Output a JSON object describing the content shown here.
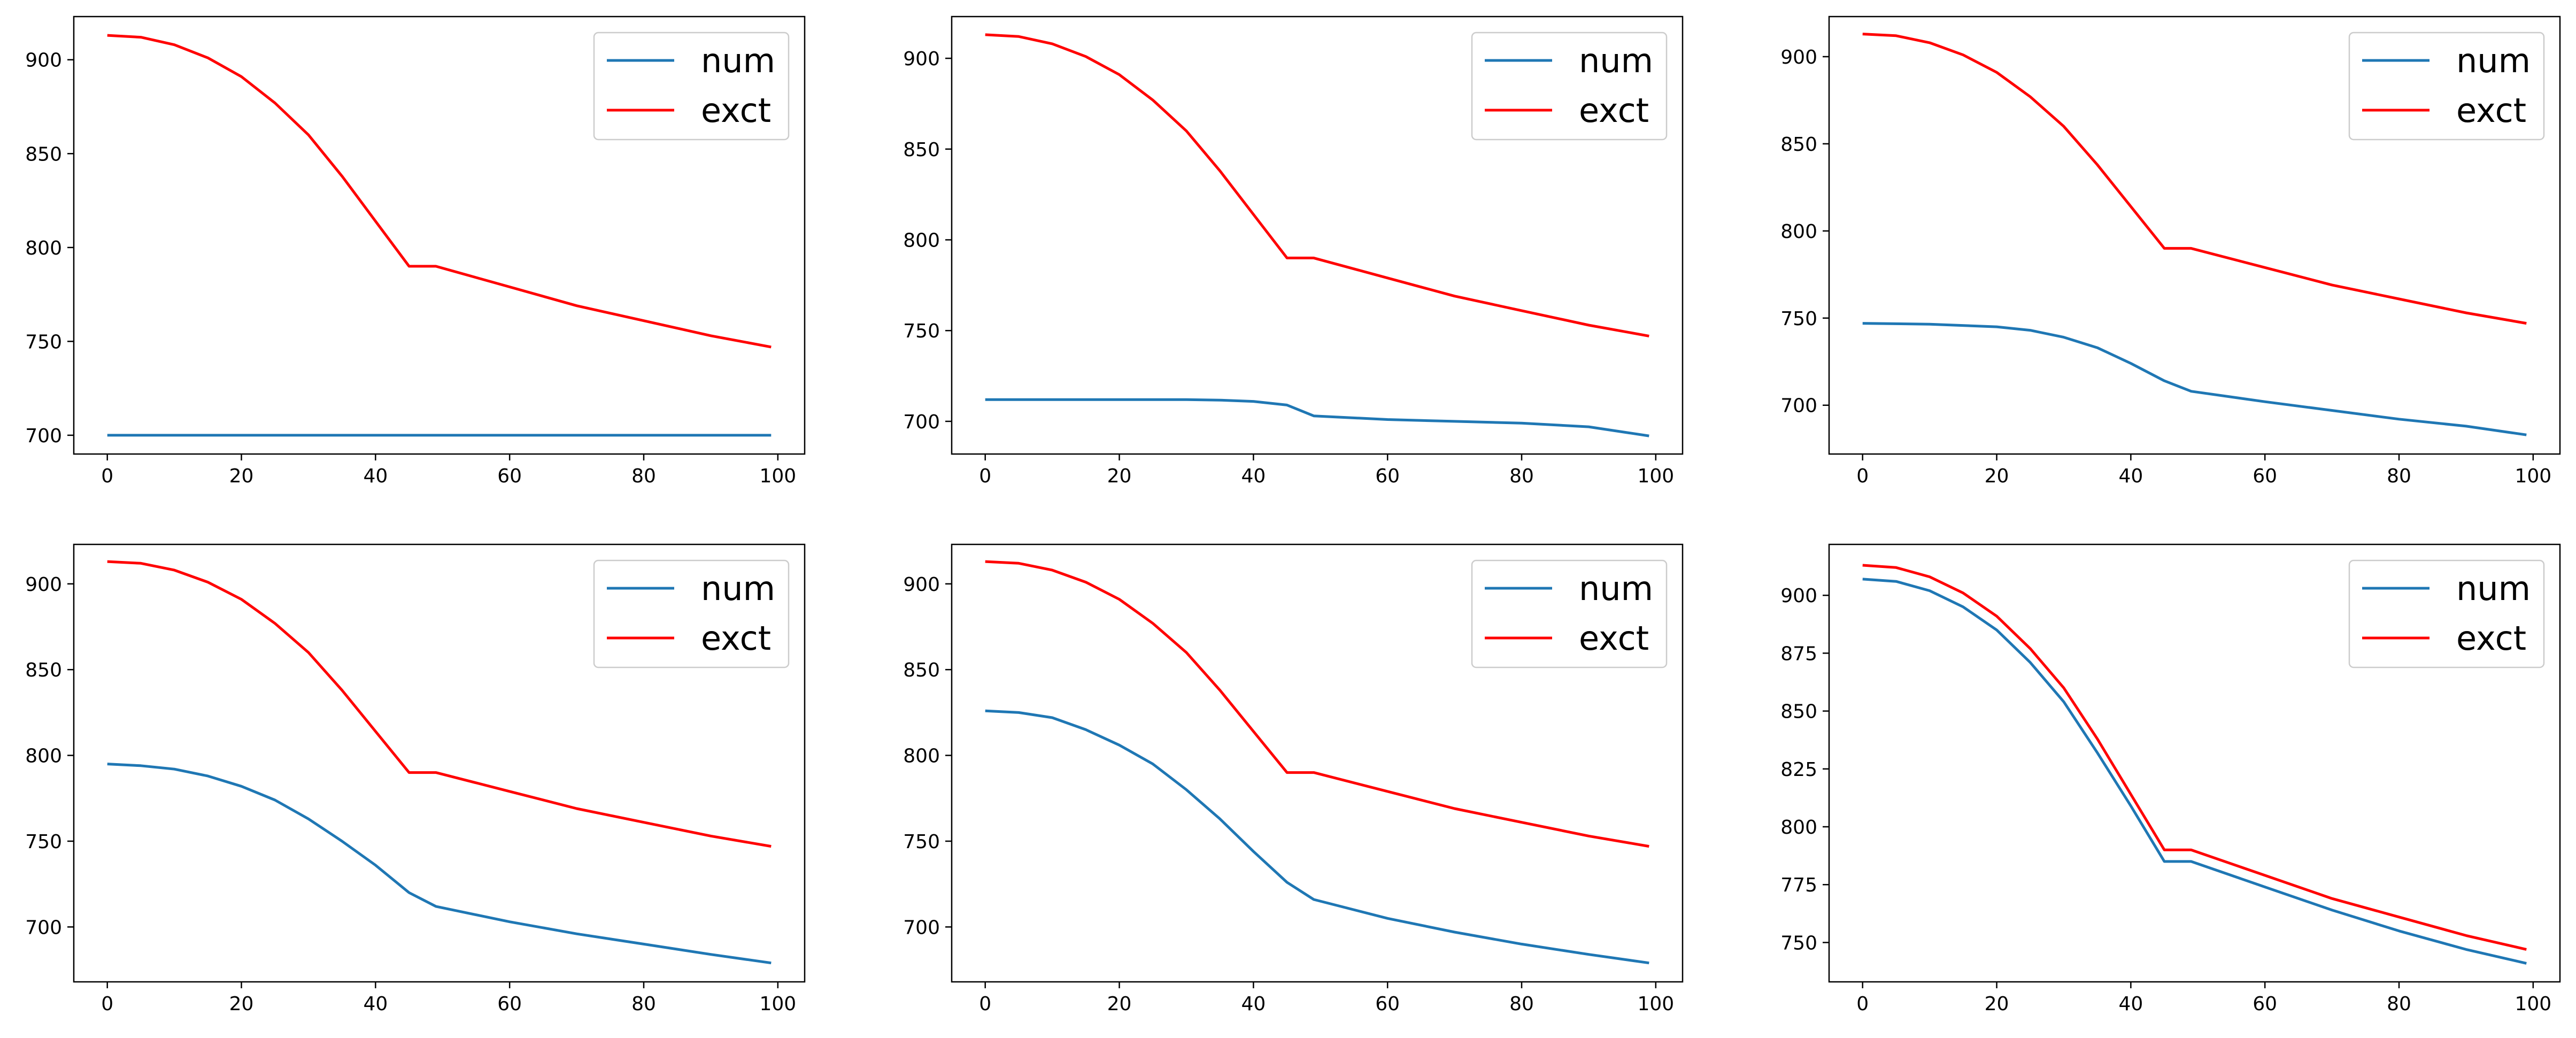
{
  "colors": {
    "num": "#1f77b4",
    "exct": "#ff0000",
    "frame": "#000000",
    "legend_border": "#cccccc"
  },
  "chart_data": [
    {
      "type": "line",
      "title": "",
      "xlabel": "",
      "ylabel": "",
      "xlim": [
        -5,
        104
      ],
      "ylim": [
        690,
        923
      ],
      "x_ticks": [
        "0",
        "20",
        "40",
        "60",
        "80",
        "100"
      ],
      "y_ticks": [
        "700",
        "750",
        "800",
        "850",
        "900"
      ],
      "grid": false,
      "legend_position": "top-right",
      "series": [
        {
          "name": "num",
          "color": "#1f77b4",
          "points": [
            [
              0,
              700
            ],
            [
              99,
              700
            ]
          ]
        },
        {
          "name": "exct",
          "color": "#ff0000",
          "points": [
            [
              0,
              913
            ],
            [
              5,
              912
            ],
            [
              10,
              908
            ],
            [
              15,
              901
            ],
            [
              20,
              891
            ],
            [
              25,
              877
            ],
            [
              30,
              860
            ],
            [
              35,
              838
            ],
            [
              40,
              814
            ],
            [
              45,
              790
            ],
            [
              49,
              790
            ],
            [
              60,
              779
            ],
            [
              70,
              769
            ],
            [
              80,
              761
            ],
            [
              90,
              753
            ],
            [
              99,
              747
            ]
          ]
        }
      ]
    },
    {
      "type": "line",
      "title": "",
      "xlabel": "",
      "ylabel": "",
      "xlim": [
        -5,
        104
      ],
      "ylim": [
        682,
        923
      ],
      "x_ticks": [
        "0",
        "20",
        "40",
        "60",
        "80",
        "100"
      ],
      "y_ticks": [
        "700",
        "750",
        "800",
        "850",
        "900"
      ],
      "grid": false,
      "legend_position": "top-right",
      "series": [
        {
          "name": "num",
          "color": "#1f77b4",
          "points": [
            [
              0,
              712
            ],
            [
              10,
              712
            ],
            [
              20,
              712
            ],
            [
              30,
              712
            ],
            [
              35,
              711.7
            ],
            [
              40,
              711
            ],
            [
              45,
              709
            ],
            [
              49,
              703
            ],
            [
              60,
              701
            ],
            [
              70,
              700
            ],
            [
              80,
              699
            ],
            [
              90,
              697
            ],
            [
              99,
              692
            ]
          ]
        },
        {
          "name": "exct",
          "color": "#ff0000",
          "points": [
            [
              0,
              913
            ],
            [
              5,
              912
            ],
            [
              10,
              908
            ],
            [
              15,
              901
            ],
            [
              20,
              891
            ],
            [
              25,
              877
            ],
            [
              30,
              860
            ],
            [
              35,
              838
            ],
            [
              40,
              814
            ],
            [
              45,
              790
            ],
            [
              49,
              790
            ],
            [
              60,
              779
            ],
            [
              70,
              769
            ],
            [
              80,
              761
            ],
            [
              90,
              753
            ],
            [
              99,
              747
            ]
          ]
        }
      ]
    },
    {
      "type": "line",
      "title": "",
      "xlabel": "",
      "ylabel": "",
      "xlim": [
        -5,
        104
      ],
      "ylim": [
        672,
        923
      ],
      "x_ticks": [
        "0",
        "20",
        "40",
        "60",
        "80",
        "100"
      ],
      "y_ticks": [
        "700",
        "750",
        "800",
        "850",
        "900"
      ],
      "grid": false,
      "legend_position": "top-right",
      "series": [
        {
          "name": "num",
          "color": "#1f77b4",
          "points": [
            [
              0,
              747
            ],
            [
              10,
              746.5
            ],
            [
              20,
              745
            ],
            [
              25,
              743
            ],
            [
              30,
              739
            ],
            [
              35,
              733
            ],
            [
              40,
              724
            ],
            [
              45,
              714
            ],
            [
              49,
              708
            ],
            [
              60,
              702
            ],
            [
              70,
              697
            ],
            [
              80,
              692
            ],
            [
              90,
              688
            ],
            [
              99,
              683
            ]
          ]
        },
        {
          "name": "exct",
          "color": "#ff0000",
          "points": [
            [
              0,
              913
            ],
            [
              5,
              912
            ],
            [
              10,
              908
            ],
            [
              15,
              901
            ],
            [
              20,
              891
            ],
            [
              25,
              877
            ],
            [
              30,
              860
            ],
            [
              35,
              838
            ],
            [
              40,
              814
            ],
            [
              45,
              790
            ],
            [
              49,
              790
            ],
            [
              60,
              779
            ],
            [
              70,
              769
            ],
            [
              80,
              761
            ],
            [
              90,
              753
            ],
            [
              99,
              747
            ]
          ]
        }
      ]
    },
    {
      "type": "line",
      "title": "",
      "xlabel": "",
      "ylabel": "",
      "xlim": [
        -5,
        104
      ],
      "ylim": [
        668,
        923
      ],
      "x_ticks": [
        "0",
        "20",
        "40",
        "60",
        "80",
        "100"
      ],
      "y_ticks": [
        "700",
        "750",
        "800",
        "850",
        "900"
      ],
      "grid": false,
      "legend_position": "top-right",
      "series": [
        {
          "name": "num",
          "color": "#1f77b4",
          "points": [
            [
              0,
              795
            ],
            [
              5,
              794
            ],
            [
              10,
              792
            ],
            [
              15,
              788
            ],
            [
              20,
              782
            ],
            [
              25,
              774
            ],
            [
              30,
              763
            ],
            [
              35,
              750
            ],
            [
              40,
              736
            ],
            [
              45,
              720
            ],
            [
              49,
              712
            ],
            [
              60,
              703
            ],
            [
              70,
              696
            ],
            [
              80,
              690
            ],
            [
              90,
              684
            ],
            [
              99,
              679
            ]
          ]
        },
        {
          "name": "exct",
          "color": "#ff0000",
          "points": [
            [
              0,
              913
            ],
            [
              5,
              912
            ],
            [
              10,
              908
            ],
            [
              15,
              901
            ],
            [
              20,
              891
            ],
            [
              25,
              877
            ],
            [
              30,
              860
            ],
            [
              35,
              838
            ],
            [
              40,
              814
            ],
            [
              45,
              790
            ],
            [
              49,
              790
            ],
            [
              60,
              779
            ],
            [
              70,
              769
            ],
            [
              80,
              761
            ],
            [
              90,
              753
            ],
            [
              99,
              747
            ]
          ]
        }
      ]
    },
    {
      "type": "line",
      "title": "",
      "xlabel": "",
      "ylabel": "",
      "xlim": [
        -5,
        104
      ],
      "ylim": [
        668,
        923
      ],
      "x_ticks": [
        "0",
        "20",
        "40",
        "60",
        "80",
        "100"
      ],
      "y_ticks": [
        "700",
        "750",
        "800",
        "850",
        "900"
      ],
      "grid": false,
      "legend_position": "top-right",
      "series": [
        {
          "name": "num",
          "color": "#1f77b4",
          "points": [
            [
              0,
              826
            ],
            [
              5,
              825
            ],
            [
              10,
              822
            ],
            [
              15,
              815
            ],
            [
              20,
              806
            ],
            [
              25,
              795
            ],
            [
              30,
              780
            ],
            [
              35,
              763
            ],
            [
              40,
              744
            ],
            [
              45,
              726
            ],
            [
              49,
              716
            ],
            [
              60,
              705
            ],
            [
              70,
              697
            ],
            [
              80,
              690
            ],
            [
              90,
              684
            ],
            [
              99,
              679
            ]
          ]
        },
        {
          "name": "exct",
          "color": "#ff0000",
          "points": [
            [
              0,
              913
            ],
            [
              5,
              912
            ],
            [
              10,
              908
            ],
            [
              15,
              901
            ],
            [
              20,
              891
            ],
            [
              25,
              877
            ],
            [
              30,
              860
            ],
            [
              35,
              838
            ],
            [
              40,
              814
            ],
            [
              45,
              790
            ],
            [
              49,
              790
            ],
            [
              60,
              779
            ],
            [
              70,
              769
            ],
            [
              80,
              761
            ],
            [
              90,
              753
            ],
            [
              99,
              747
            ]
          ]
        }
      ]
    },
    {
      "type": "line",
      "title": "",
      "xlabel": "",
      "ylabel": "",
      "xlim": [
        -5,
        104
      ],
      "ylim": [
        733,
        922
      ],
      "x_ticks": [
        "0",
        "20",
        "40",
        "60",
        "80",
        "100"
      ],
      "y_ticks": [
        "750",
        "775",
        "800",
        "825",
        "850",
        "875",
        "900"
      ],
      "grid": false,
      "legend_position": "top-right",
      "series": [
        {
          "name": "num",
          "color": "#1f77b4",
          "points": [
            [
              0,
              907
            ],
            [
              5,
              906
            ],
            [
              10,
              902
            ],
            [
              15,
              895
            ],
            [
              20,
              885
            ],
            [
              25,
              871
            ],
            [
              30,
              854
            ],
            [
              35,
              832
            ],
            [
              40,
              809
            ],
            [
              45,
              785
            ],
            [
              49,
              785
            ],
            [
              60,
              774
            ],
            [
              70,
              764
            ],
            [
              80,
              755
            ],
            [
              90,
              747
            ],
            [
              99,
              741
            ]
          ]
        },
        {
          "name": "exct",
          "color": "#ff0000",
          "points": [
            [
              0,
              913
            ],
            [
              5,
              912
            ],
            [
              10,
              908
            ],
            [
              15,
              901
            ],
            [
              20,
              891
            ],
            [
              25,
              877
            ],
            [
              30,
              860
            ],
            [
              35,
              838
            ],
            [
              40,
              814
            ],
            [
              45,
              790
            ],
            [
              49,
              790
            ],
            [
              60,
              779
            ],
            [
              70,
              769
            ],
            [
              80,
              761
            ],
            [
              90,
              753
            ],
            [
              99,
              747
            ]
          ]
        }
      ]
    }
  ]
}
